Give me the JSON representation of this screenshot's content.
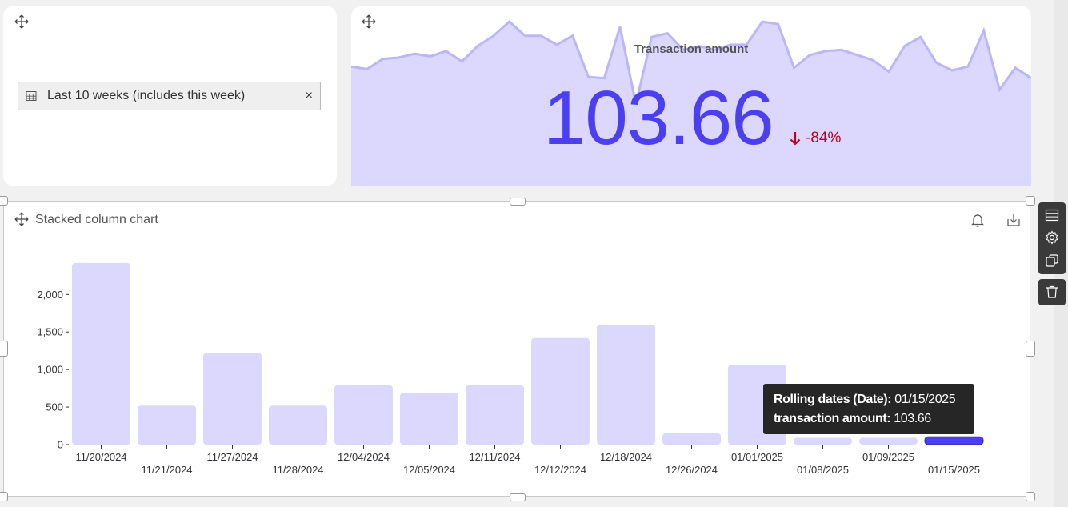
{
  "filter": {
    "date_range_label": "Last 10 weeks (includes this week)",
    "clear_symbol": "×"
  },
  "kpi": {
    "title": "Transaction amount",
    "value": "103.66",
    "delta": "-84%",
    "color": "#4b3ff0",
    "delta_color": "#c0001f",
    "sparkline_values": [
      92,
      90,
      98,
      99,
      102,
      100,
      104,
      96,
      108,
      116,
      127,
      116,
      116,
      109,
      116,
      84,
      83,
      123,
      63,
      115,
      118,
      105,
      108,
      105,
      109,
      109,
      127,
      125,
      91,
      101,
      104,
      105,
      101,
      97,
      88,
      108,
      115,
      95,
      89,
      92,
      120,
      74,
      91,
      83
    ]
  },
  "chart": {
    "title": "Stacked column chart",
    "icons": [
      "bell-icon",
      "download-icon"
    ],
    "tooltip": {
      "date_label": "Rolling dates (Date):",
      "date_value": "01/15/2025",
      "amount_label": "transaction amount:",
      "amount_value": "103.66"
    }
  },
  "chart_data": {
    "type": "bar",
    "categories": [
      "11/20/2024",
      "11/21/2024",
      "11/27/2024",
      "11/28/2024",
      "12/04/2024",
      "12/05/2024",
      "12/11/2024",
      "12/12/2024",
      "12/18/2024",
      "12/26/2024",
      "01/01/2025",
      "01/08/2025",
      "01/09/2025",
      "01/15/2025"
    ],
    "values": [
      2420,
      520,
      1220,
      520,
      790,
      690,
      790,
      1420,
      1600,
      150,
      1060,
      90,
      90,
      103.66
    ],
    "yticks": [
      0,
      500,
      1000,
      1500,
      2000
    ],
    "ytick_labels": [
      "0",
      "500",
      "1,000",
      "1,500",
      "2,000"
    ],
    "ylim": [
      0,
      2600
    ],
    "bar_color": "#dcd7fd",
    "highlight_color": "#4b3ff0",
    "highlight_index": 13
  },
  "toolbar": {
    "icons": [
      "table-icon",
      "gear-icon",
      "duplicate-icon",
      "trash-icon"
    ]
  }
}
